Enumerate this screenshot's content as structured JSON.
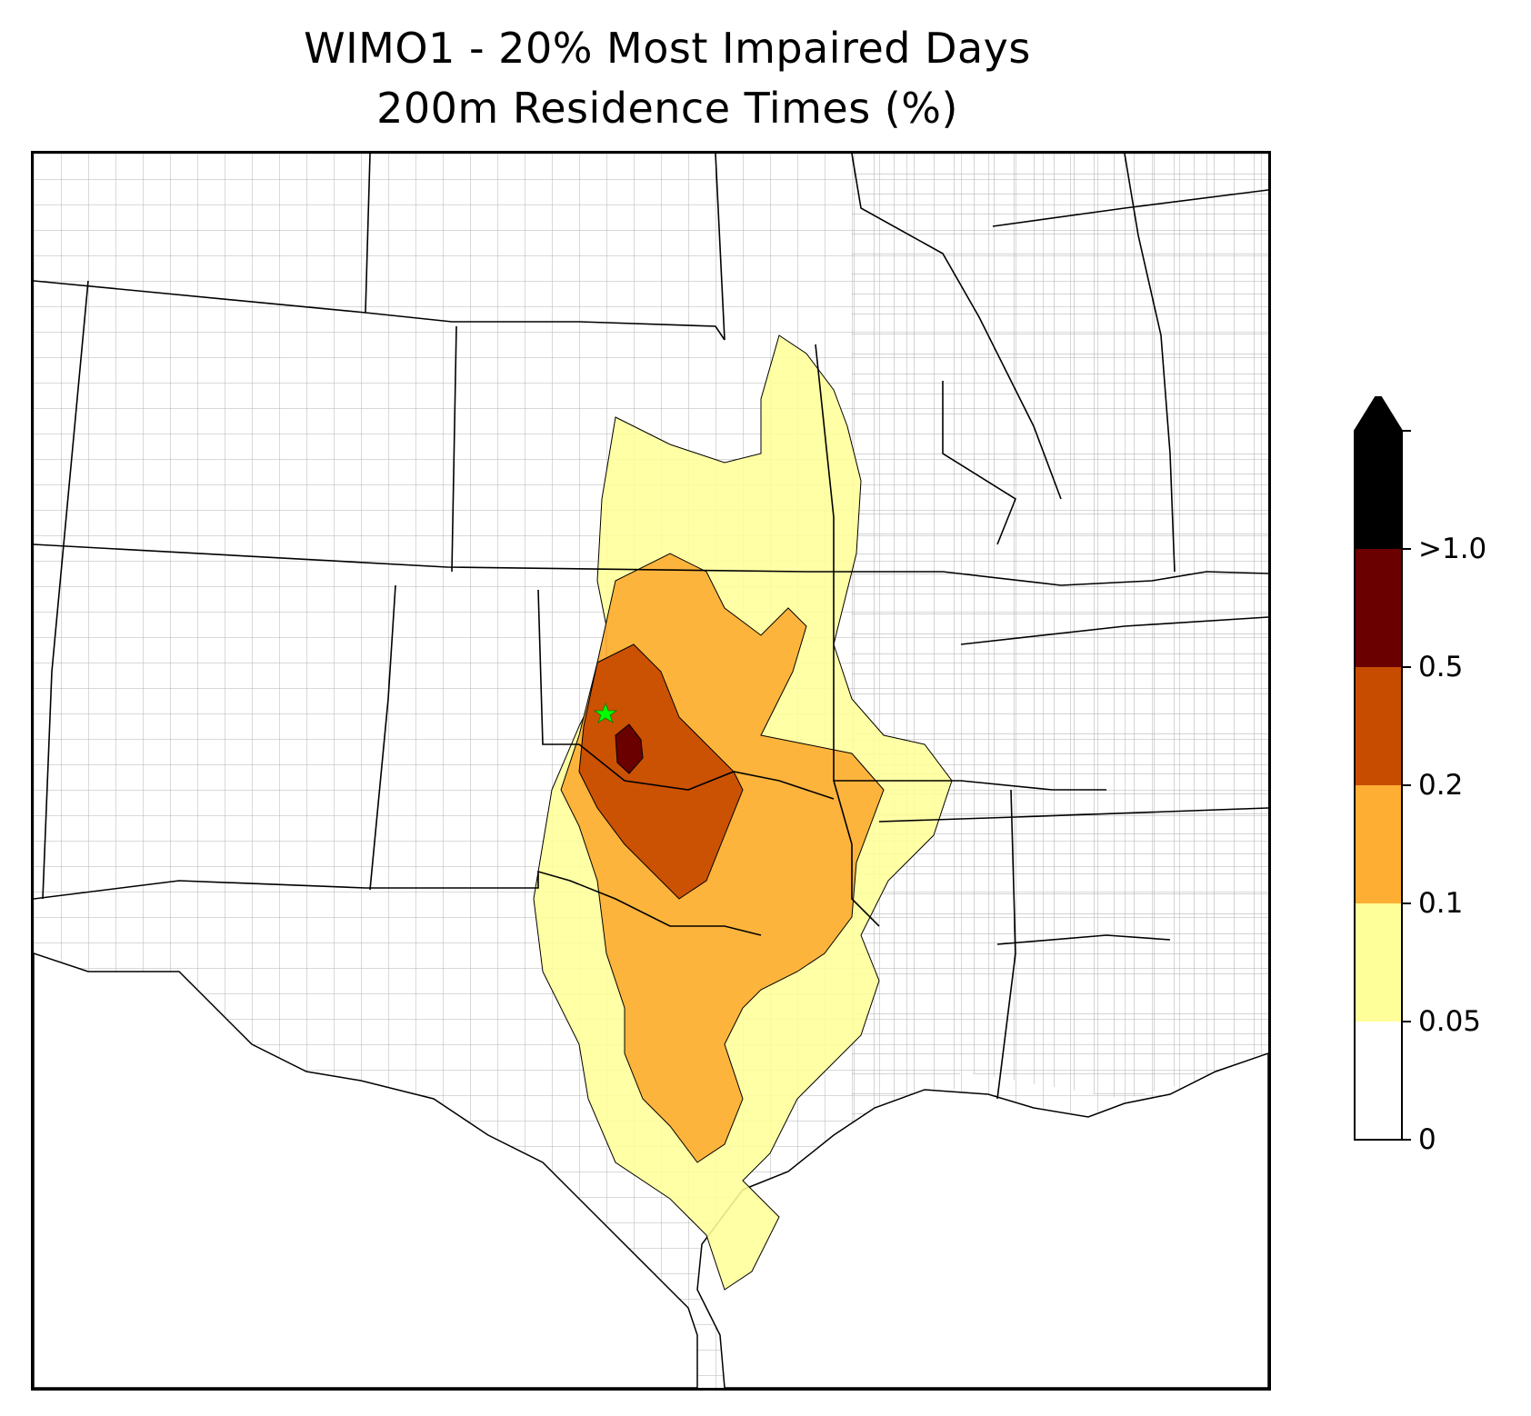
{
  "title": {
    "line1": "WIMO1 - 20% Most Impaired Days",
    "line2": "200m Residence Times (%)"
  },
  "map": {
    "site_marker": {
      "symbol": "star",
      "color": "#00ff00"
    },
    "colors": {
      "state_border": "#000000",
      "county_border": "#aaaaaa",
      "coastline": "#000000",
      "background": "#ffffff"
    }
  },
  "legend": {
    "extend": "max",
    "bins": [
      {
        "label": "0",
        "color": "#ffffff"
      },
      {
        "label": "0.05",
        "color": "#ffff99"
      },
      {
        "label": "0.1",
        "color": "#fdae33"
      },
      {
        "label": "0.2",
        "color": "#c84c00"
      },
      {
        "label": "0.5",
        "color": "#6b0000"
      },
      {
        "label": ">1.0",
        "color": "#000000"
      }
    ]
  }
}
